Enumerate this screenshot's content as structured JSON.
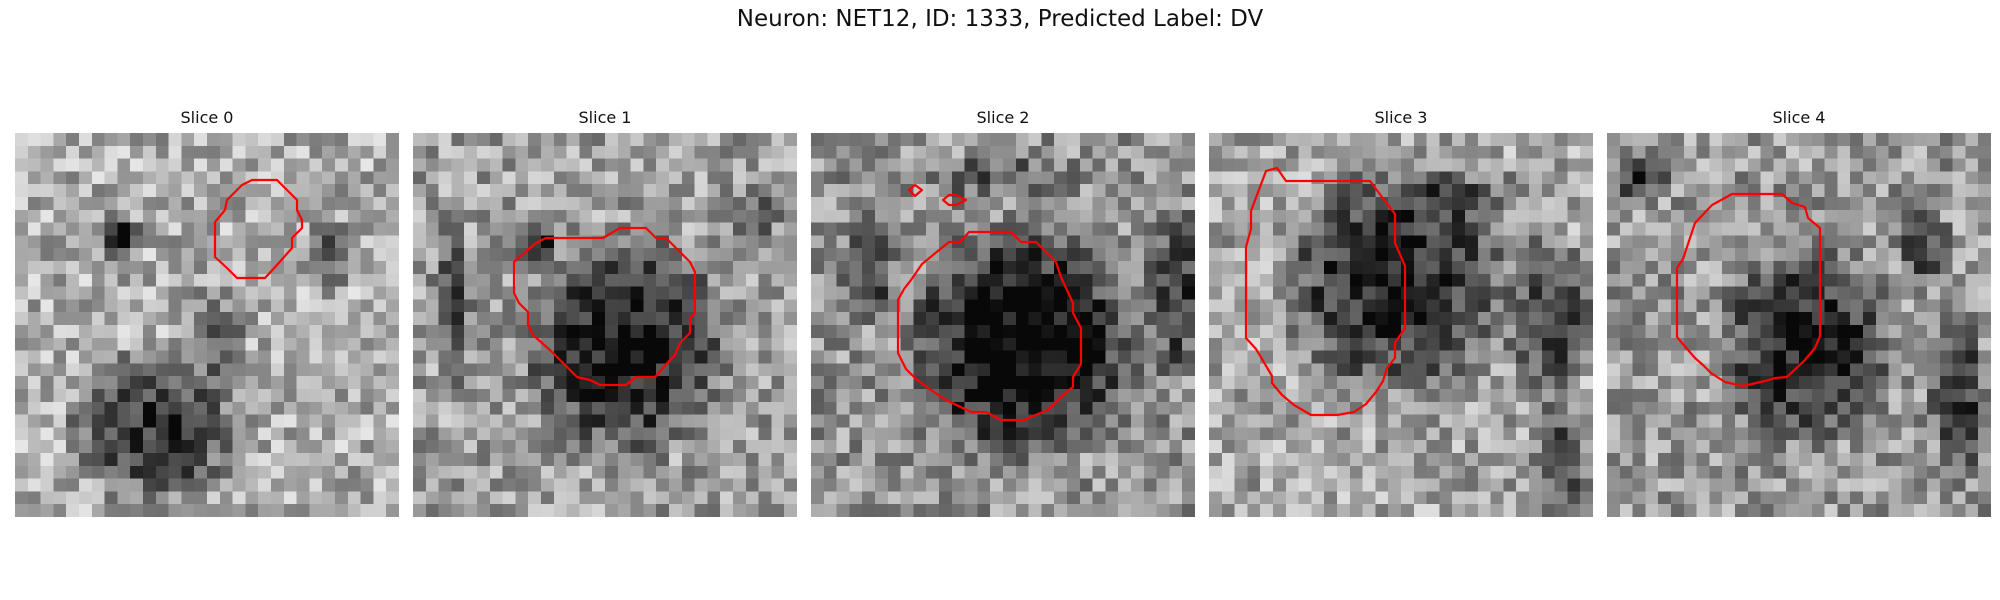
{
  "figure": {
    "title": "Neuron: NET12, ID: 1333, Predicted Label: DV",
    "contour_color": "#ff0000",
    "colormap": "grayscale",
    "slices": [
      {
        "title": "Slice 0",
        "region": "cell body outlined at upper right of slice"
      },
      {
        "title": "Slice 1",
        "region": "large dark cell body outlined at center"
      },
      {
        "title": "Slice 2",
        "region": "large dark cell body outlined at center, two small spurious contours at top"
      },
      {
        "title": "Slice 3",
        "region": "dark cell body outlined at upper center"
      },
      {
        "title": "Slice 4",
        "region": "smaller dark cell body outlined at center"
      }
    ]
  }
}
